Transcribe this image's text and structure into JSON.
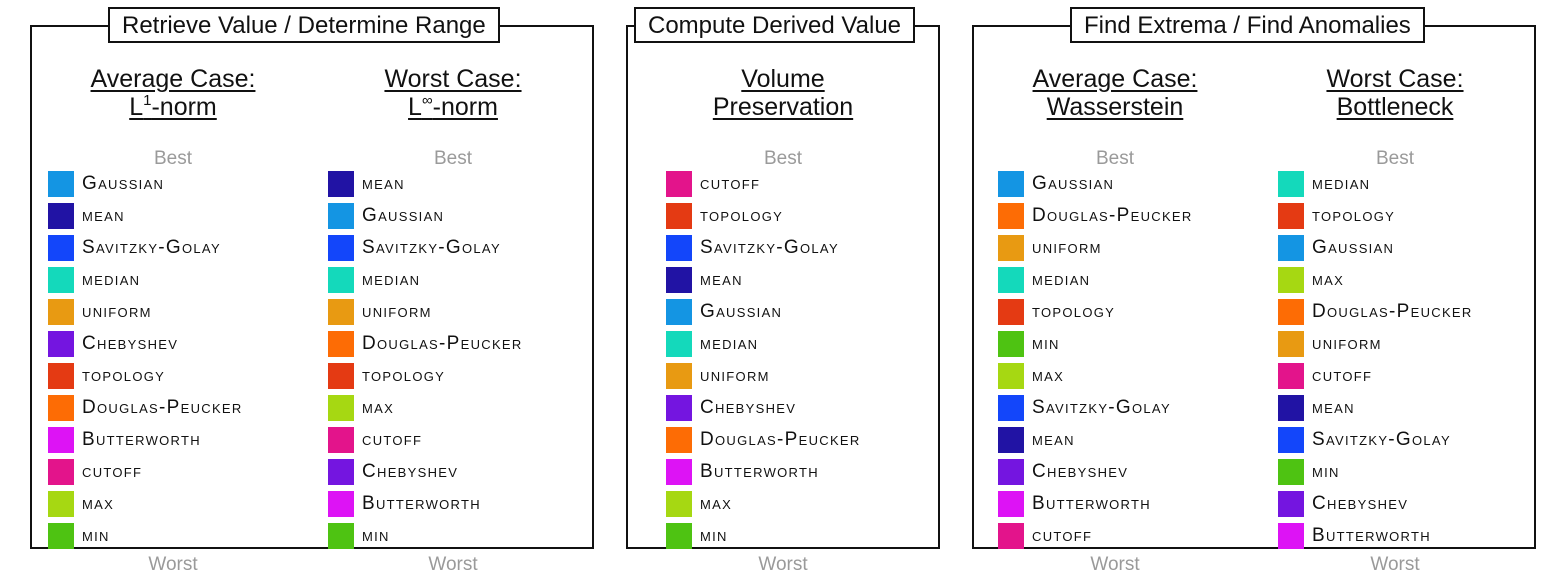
{
  "panels": [
    {
      "title": "Retrieve Value / Determine Range",
      "columns": [
        {
          "title_lines": [
            "Average Case:",
            "-norm"
          ],
          "title_prefix": "L",
          "title_sup": "1",
          "best": "Best",
          "worst": "Worst",
          "items": [
            {
              "label": "Gaussian",
              "color": "#1495e3"
            },
            {
              "label": "mean",
              "color": "#2113a4"
            },
            {
              "label": "Savitzky-Golay",
              "color": "#1346fa"
            },
            {
              "label": "median",
              "color": "#14d9bb"
            },
            {
              "label": "uniform",
              "color": "#e89a12"
            },
            {
              "label": "Chebyshev",
              "color": "#7415e0"
            },
            {
              "label": "topology",
              "color": "#e43a13"
            },
            {
              "label": "Douglas-Peucker",
              "color": "#fd6c05"
            },
            {
              "label": "Butterworth",
              "color": "#dd13f5"
            },
            {
              "label": "cutoff",
              "color": "#e3148b"
            },
            {
              "label": "max",
              "color": "#a6d812"
            },
            {
              "label": "min",
              "color": "#4ec312"
            }
          ]
        },
        {
          "title_lines": [
            "Worst Case:",
            "-norm"
          ],
          "title_prefix": "L",
          "title_sup": "∞",
          "best": "Best",
          "worst": "Worst",
          "items": [
            {
              "label": "mean",
              "color": "#2113a4"
            },
            {
              "label": "Gaussian",
              "color": "#1495e3"
            },
            {
              "label": "Savitzky-Golay",
              "color": "#1346fa"
            },
            {
              "label": "median",
              "color": "#14d9bb"
            },
            {
              "label": "uniform",
              "color": "#e89a12"
            },
            {
              "label": "Douglas-Peucker",
              "color": "#fd6c05"
            },
            {
              "label": "topology",
              "color": "#e43a13"
            },
            {
              "label": "max",
              "color": "#a6d812"
            },
            {
              "label": "cutoff",
              "color": "#e3148b"
            },
            {
              "label": "Chebyshev",
              "color": "#7415e0"
            },
            {
              "label": "Butterworth",
              "color": "#dd13f5"
            },
            {
              "label": "min",
              "color": "#4ec312"
            }
          ]
        }
      ]
    },
    {
      "title": "Compute Derived Value",
      "columns": [
        {
          "title_lines": [
            "Volume",
            "Preservation"
          ],
          "best": "Best",
          "worst": "Worst",
          "items": [
            {
              "label": "cutoff",
              "color": "#e3148b"
            },
            {
              "label": "topology",
              "color": "#e43a13"
            },
            {
              "label": "Savitzky-Golay",
              "color": "#1346fa"
            },
            {
              "label": "mean",
              "color": "#2113a4"
            },
            {
              "label": "Gaussian",
              "color": "#1495e3"
            },
            {
              "label": "median",
              "color": "#14d9bb"
            },
            {
              "label": "uniform",
              "color": "#e89a12"
            },
            {
              "label": "Chebyshev",
              "color": "#7415e0"
            },
            {
              "label": "Douglas-Peucker",
              "color": "#fd6c05"
            },
            {
              "label": "Butterworth",
              "color": "#dd13f5"
            },
            {
              "label": "max",
              "color": "#a6d812"
            },
            {
              "label": "min",
              "color": "#4ec312"
            }
          ]
        }
      ]
    },
    {
      "title": "Find Extrema / Find Anomalies",
      "columns": [
        {
          "title_lines": [
            "Average Case:",
            "Wasserstein"
          ],
          "best": "Best",
          "worst": "Worst",
          "items": [
            {
              "label": "Gaussian",
              "color": "#1495e3"
            },
            {
              "label": "Douglas-Peucker",
              "color": "#fd6c05"
            },
            {
              "label": "uniform",
              "color": "#e89a12"
            },
            {
              "label": "median",
              "color": "#14d9bb"
            },
            {
              "label": "topology",
              "color": "#e43a13"
            },
            {
              "label": "min",
              "color": "#4ec312"
            },
            {
              "label": "max",
              "color": "#a6d812"
            },
            {
              "label": "Savitzky-Golay",
              "color": "#1346fa"
            },
            {
              "label": "mean",
              "color": "#2113a4"
            },
            {
              "label": "Chebyshev",
              "color": "#7415e0"
            },
            {
              "label": "Butterworth",
              "color": "#dd13f5"
            },
            {
              "label": "cutoff",
              "color": "#e3148b"
            }
          ]
        },
        {
          "title_lines": [
            "Worst Case:",
            "Bottleneck"
          ],
          "best": "Best",
          "worst": "Worst",
          "items": [
            {
              "label": "median",
              "color": "#14d9bb"
            },
            {
              "label": "topology",
              "color": "#e43a13"
            },
            {
              "label": "Gaussian",
              "color": "#1495e3"
            },
            {
              "label": "max",
              "color": "#a6d812"
            },
            {
              "label": "Douglas-Peucker",
              "color": "#fd6c05"
            },
            {
              "label": "uniform",
              "color": "#e89a12"
            },
            {
              "label": "cutoff",
              "color": "#e3148b"
            },
            {
              "label": "mean",
              "color": "#2113a4"
            },
            {
              "label": "Savitzky-Golay",
              "color": "#1346fa"
            },
            {
              "label": "min",
              "color": "#4ec312"
            },
            {
              "label": "Chebyshev",
              "color": "#7415e0"
            },
            {
              "label": "Butterworth",
              "color": "#dd13f5"
            }
          ]
        }
      ]
    }
  ]
}
